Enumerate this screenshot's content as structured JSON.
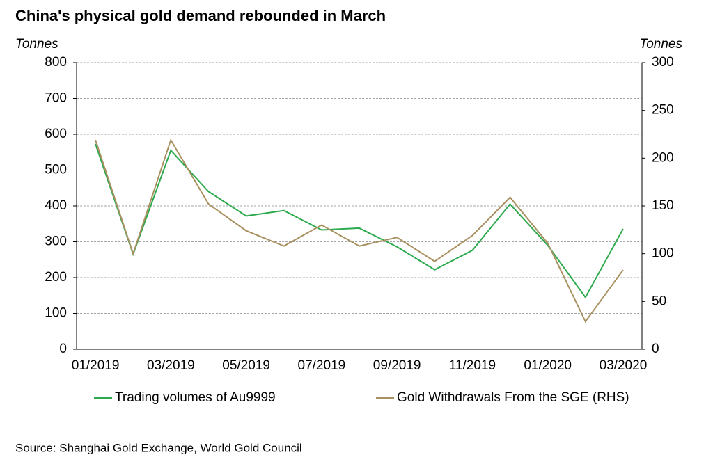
{
  "chart_data": {
    "type": "line",
    "title": "China's physical gold demand rebounded in March",
    "y_axis_label": "Tonnes",
    "y2_axis_label": "Tonnes",
    "source": "Source: Shanghai Gold Exchange, World Gold Council",
    "categories": [
      "01/2019",
      null,
      "03/2019",
      null,
      "05/2019",
      null,
      "07/2019",
      null,
      "09/2019",
      null,
      "11/2019",
      null,
      "01/2020",
      null,
      "03/2020"
    ],
    "series": [
      {
        "name": "Trading volumes of Au9999",
        "color": "#2eaa4e",
        "values": [
          573,
          265,
          555,
          440,
          372,
          387,
          333,
          338,
          286,
          222,
          276,
          405,
          290,
          145,
          336
        ]
      },
      {
        "name": "Gold Withdrawals From the SGE (RHS)",
        "color": "#a89060",
        "axis": "y2",
        "values": [
          219,
          100,
          219,
          152,
          124,
          108,
          130,
          108,
          117,
          92,
          119,
          159,
          111,
          29,
          83
        ]
      }
    ],
    "ylim": [
      0,
      800
    ],
    "yticks": [
      0,
      100,
      200,
      300,
      400,
      500,
      600,
      700,
      800
    ],
    "y2lim": [
      0,
      300
    ],
    "y2ticks": [
      0,
      50,
      100,
      150,
      200,
      250,
      300
    ],
    "grid": true,
    "legend": "bottom"
  }
}
